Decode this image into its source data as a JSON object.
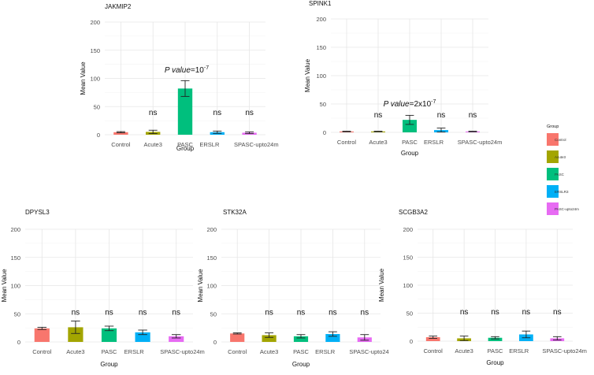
{
  "chart_data": [
    {
      "type": "bar",
      "title": "JAKMIP2",
      "categories": [
        "Control",
        "Acute3",
        "PASC",
        "ERSLR",
        "SPASC-upto24m"
      ],
      "values": [
        4.5,
        5,
        82,
        4.5,
        3.5
      ],
      "errors": [
        1,
        3,
        14,
        2,
        1.5
      ],
      "significance": [
        "",
        "ns",
        "",
        "ns",
        "ns"
      ],
      "annotation": {
        "category": "PASC",
        "prefix": "P value",
        "text": "=10",
        "sup": "-7"
      },
      "xlabel": "Group",
      "ylabel": "Mean Value",
      "ylim": [
        0,
        200
      ],
      "yticks": [
        0,
        50,
        100,
        150,
        200
      ]
    },
    {
      "type": "bar",
      "title": "SPINK1",
      "categories": [
        "Control",
        "Acute3",
        "PASC",
        "ERSLR",
        "SPASC-upto24m"
      ],
      "values": [
        1.5,
        1.5,
        22,
        4,
        1.5
      ],
      "errors": [
        0.5,
        0.5,
        8,
        3.5,
        0.5
      ],
      "significance": [
        "",
        "ns",
        "",
        "ns",
        "ns"
      ],
      "annotation": {
        "category": "PASC",
        "prefix": "P value",
        "text": "=2x10",
        "sup": "-7"
      },
      "xlabel": "Group",
      "ylabel": "Mean Value",
      "ylim": [
        0,
        200
      ],
      "yticks": [
        0,
        50,
        100,
        150,
        200
      ]
    },
    {
      "type": "bar",
      "title": "DPYSL3",
      "categories": [
        "Control",
        "Acute3",
        "PASC",
        "ERSLR",
        "SPASC-upto24m"
      ],
      "values": [
        24,
        26,
        24,
        17,
        10
      ],
      "errors": [
        2,
        11,
        4,
        4,
        3
      ],
      "significance": [
        "",
        "ns",
        "ns",
        "ns",
        "ns"
      ],
      "xlabel": "Group",
      "ylabel": "Mean Value",
      "ylim": [
        0,
        200
      ],
      "yticks": [
        0,
        50,
        100,
        150,
        200
      ]
    },
    {
      "type": "bar",
      "title": "STK32A",
      "categories": [
        "Control",
        "Acute3",
        "PASC",
        "ERSLR",
        "SPASC-upto24"
      ],
      "values": [
        15,
        12,
        10,
        14,
        8
      ],
      "errors": [
        1,
        4,
        3,
        4,
        5
      ],
      "significance": [
        "",
        "ns",
        "ns",
        "ns",
        "ns"
      ],
      "xlabel": "Group",
      "ylabel": "Mean Value",
      "ylim": [
        0,
        200
      ],
      "yticks": [
        0,
        50,
        100,
        150,
        200
      ]
    },
    {
      "type": "bar",
      "title": "SCGB3A2",
      "categories": [
        "Control",
        "Acute3",
        "PASC",
        "ERSLR",
        "SPASC-upto24m"
      ],
      "values": [
        7,
        5,
        6,
        12,
        5
      ],
      "errors": [
        2,
        4,
        2,
        6,
        3
      ],
      "significance": [
        "",
        "ns",
        "ns",
        "ns",
        "ns"
      ],
      "xlabel": "Group",
      "ylabel": "Mean Value",
      "ylim": [
        0,
        200
      ],
      "yticks": [
        0,
        50,
        100,
        150,
        200
      ]
    }
  ],
  "legend": {
    "title": "Group",
    "items": [
      {
        "label": "Control",
        "color": "#F8766D"
      },
      {
        "label": "Acute3",
        "color": "#A3A500"
      },
      {
        "label": "PASC",
        "color": "#00BF7D"
      },
      {
        "label": "ERSLR3",
        "color": "#00B0F6"
      },
      {
        "label": "PASC-upto24m",
        "color": "#E76BF3"
      }
    ]
  },
  "colors": [
    "#F8766D",
    "#A3A500",
    "#00BF7D",
    "#00B0F6",
    "#E76BF3"
  ]
}
